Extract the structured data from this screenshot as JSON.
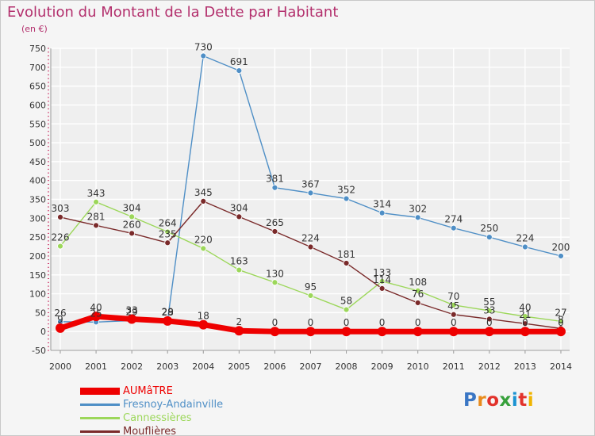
{
  "title": "Evolution du Montant de la Dette par Habitant",
  "unit": "(en €)",
  "logo": {
    "text": "Proxiti",
    "colors": [
      "#3a76c4",
      "#e98b1c",
      "#e2322b",
      "#36a03a",
      "#1c93d2",
      "#e2322b",
      "#f0b400"
    ]
  },
  "colors": {
    "background": "#f5f5f5",
    "grid": "#ffffff",
    "axis_tick": "#cc3366",
    "title": "#b3306d"
  },
  "chart_data": {
    "type": "line",
    "title": "Evolution du Montant de la Dette par Habitant",
    "xlabel": "",
    "ylabel": "(en €)",
    "x": [
      "2000",
      "2001",
      "2002",
      "2003",
      "2004",
      "2005",
      "2006",
      "2007",
      "2008",
      "2009",
      "2010",
      "2011",
      "2012",
      "2013",
      "2014"
    ],
    "ylim": [
      -50,
      750
    ],
    "yticks": [
      -50,
      0,
      50,
      100,
      150,
      200,
      250,
      300,
      350,
      400,
      450,
      500,
      550,
      600,
      650,
      700,
      750
    ],
    "grid": true,
    "legend_position": "bottom-left",
    "series": [
      {
        "name": "AUMâTRE",
        "color": "#ee0000",
        "values": [
          9,
          40,
          33,
          28,
          18,
          2,
          0,
          0,
          0,
          0,
          0,
          0,
          0,
          0,
          0
        ],
        "labels": [
          "9",
          "40",
          "33",
          "28",
          "18",
          "2",
          "0",
          "0",
          "0",
          "0",
          "0",
          "0",
          "0",
          "0",
          "0"
        ]
      },
      {
        "name": "Fresnoy-Andainville",
        "color": "#4f8fc6",
        "values": [
          26,
          25,
          29,
          29,
          730,
          691,
          381,
          367,
          352,
          314,
          302,
          274,
          250,
          224,
          200
        ],
        "labels": [
          "26",
          "25",
          "29",
          "29",
          "730",
          "691",
          "381",
          "367",
          "352",
          "314",
          "302",
          "274",
          "250",
          "224",
          "200"
        ]
      },
      {
        "name": "Cannessières",
        "color": "#9cd75a",
        "values": [
          226,
          343,
          304,
          264,
          220,
          163,
          130,
          95,
          58,
          133,
          108,
          70,
          55,
          40,
          27
        ],
        "labels": [
          "226",
          "343",
          "304",
          "264",
          "220",
          "163",
          "130",
          "95",
          "58",
          "133",
          "108",
          "70",
          "55",
          "40",
          "27"
        ]
      },
      {
        "name": "Mouflières",
        "color": "#7a2a2a",
        "values": [
          303,
          281,
          260,
          235,
          345,
          304,
          265,
          224,
          181,
          114,
          76,
          45,
          33,
          21,
          8
        ],
        "labels": [
          "303",
          "281",
          "260",
          "235",
          "345",
          "304",
          "265",
          "224",
          "181",
          "114",
          "76",
          "45",
          "33",
          "21",
          "8"
        ]
      }
    ]
  }
}
